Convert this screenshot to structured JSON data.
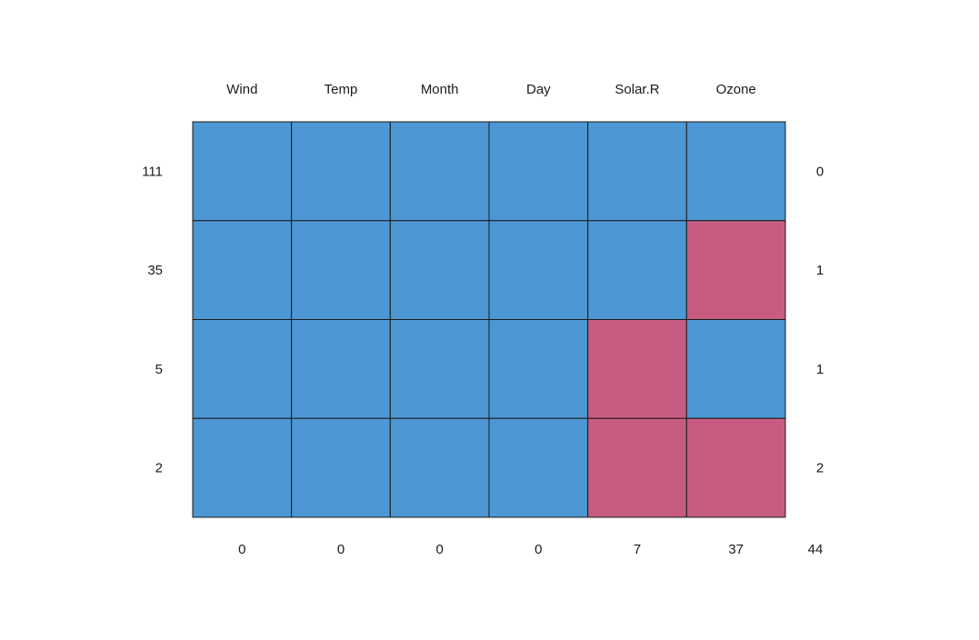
{
  "chart_data": {
    "type": "heatmap",
    "title": "",
    "variables": [
      "Wind",
      "Temp",
      "Month",
      "Day",
      "Solar.R",
      "Ozone"
    ],
    "patterns": [
      {
        "count": 111,
        "values": [
          1,
          1,
          1,
          1,
          1,
          1
        ],
        "missing": 0
      },
      {
        "count": 35,
        "values": [
          1,
          1,
          1,
          1,
          1,
          0
        ],
        "missing": 1
      },
      {
        "count": 5,
        "values": [
          1,
          1,
          1,
          1,
          0,
          1
        ],
        "missing": 1
      },
      {
        "count": 2,
        "values": [
          1,
          1,
          1,
          1,
          0,
          0
        ],
        "missing": 2
      }
    ],
    "column_missing_totals": [
      0,
      0,
      0,
      0,
      7,
      37
    ],
    "total_missing": 44,
    "colors": {
      "observed": "#4d97d4",
      "missing": "#c75c82",
      "border": "#1a1a1a"
    }
  }
}
